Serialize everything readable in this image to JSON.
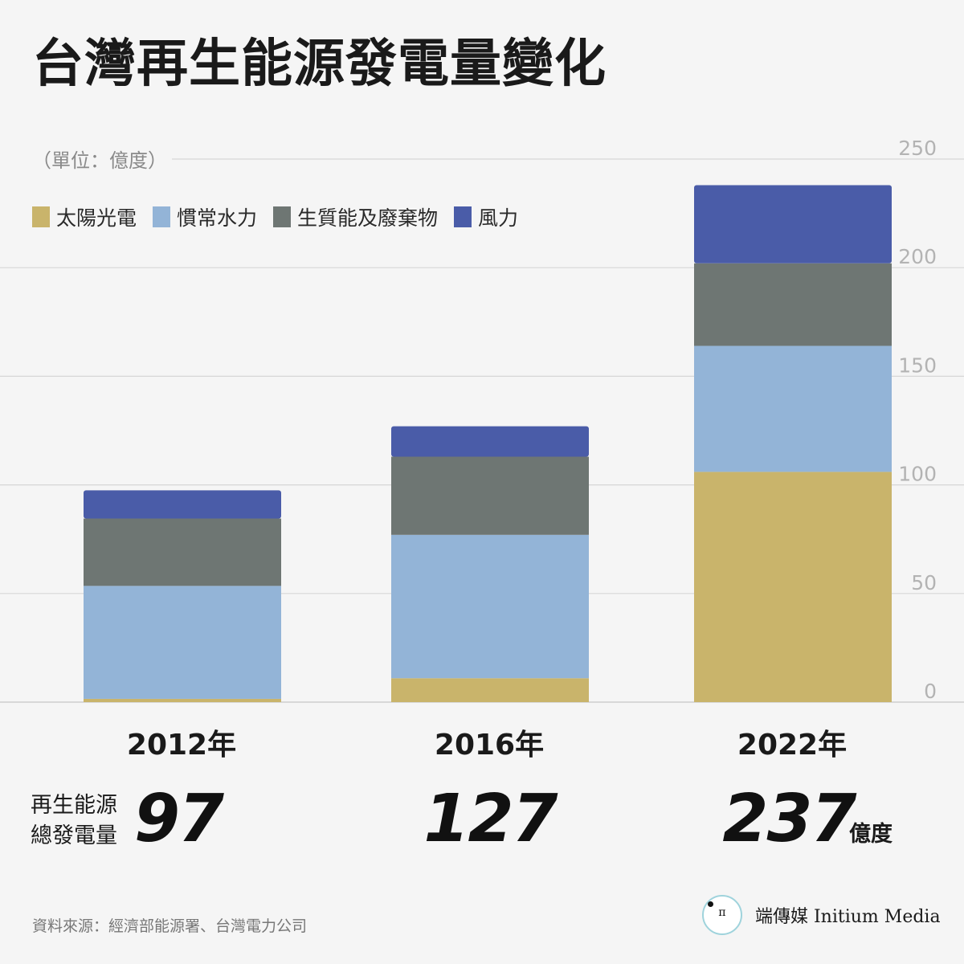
{
  "title": "台灣再生能源發電量變化",
  "unit_label": "（單位：億度）",
  "legend": [
    {
      "label": "太陽光電",
      "color": "#c9b46b"
    },
    {
      "label": "慣常水力",
      "color": "#93b4d7"
    },
    {
      "label": "生質能及廢棄物",
      "color": "#6e7673"
    },
    {
      "label": "風力",
      "color": "#4a5ca8"
    }
  ],
  "chart_data": {
    "type": "bar",
    "stacked": true,
    "categories": [
      "2012年",
      "2016年",
      "2022年"
    ],
    "series": [
      {
        "name": "太陽光電",
        "color": "#c9b46b",
        "values": [
          1.5,
          11,
          106
        ]
      },
      {
        "name": "慣常水力",
        "color": "#93b4d7",
        "values": [
          52,
          66,
          58
        ]
      },
      {
        "name": "生質能及廢棄物",
        "color": "#6e7673",
        "values": [
          31,
          36,
          38
        ]
      },
      {
        "name": "風力",
        "color": "#4a5ca8",
        "values": [
          13,
          14,
          36
        ]
      }
    ],
    "totals": [
      97,
      127,
      237
    ],
    "ylim": [
      0,
      250
    ],
    "yticks": [
      "0",
      "50",
      "100",
      "150",
      "200",
      "250"
    ],
    "grid": true,
    "legend_position": "top-left"
  },
  "years": [
    "2012年",
    "2016年",
    "2022年"
  ],
  "total_caption_line1": "再生能源",
  "total_caption_line2": "總發電量",
  "totals_display": [
    "97",
    "127",
    "237"
  ],
  "total_unit": "億度",
  "source": "資料來源：經濟部能源署、台灣電力公司",
  "brand": {
    "logo_glyph": "п",
    "name": "端傳媒 Initium Media"
  }
}
